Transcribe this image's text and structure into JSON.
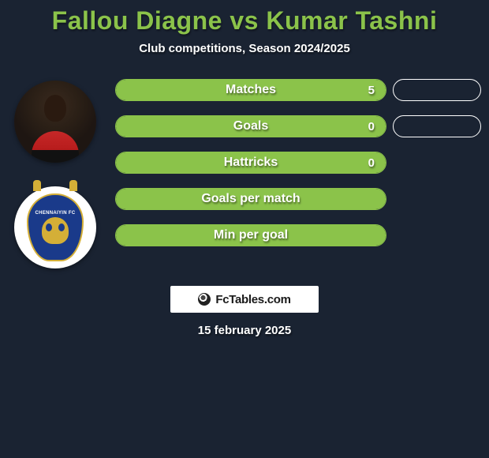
{
  "title": "Fallou Diagne vs Kumar Tashni",
  "subtitle": "Club competitions, Season 2024/2025",
  "footer_brand": "FcTables.com",
  "footer_date": "15 february 2025",
  "colors": {
    "background": "#1a2332",
    "accent": "#8bc34a",
    "text": "#ffffff",
    "pill_border": "#ffffff",
    "logo_bg": "#ffffff",
    "club_blue": "#1a3a8a",
    "club_gold": "#d4af37"
  },
  "stats": [
    {
      "label": "Matches",
      "value": "5",
      "fill_pct": 100,
      "show_value": true,
      "show_pill": true
    },
    {
      "label": "Goals",
      "value": "0",
      "fill_pct": 100,
      "show_value": true,
      "show_pill": true
    },
    {
      "label": "Hattricks",
      "value": "0",
      "fill_pct": 100,
      "show_value": true,
      "show_pill": false
    },
    {
      "label": "Goals per match",
      "value": "",
      "fill_pct": 100,
      "show_value": false,
      "show_pill": false
    },
    {
      "label": "Min per goal",
      "value": "",
      "fill_pct": 100,
      "show_value": false,
      "show_pill": false
    }
  ],
  "club_logo_text": "CHENNAIYIN FC",
  "typography": {
    "title_fontsize": 32,
    "subtitle_fontsize": 15,
    "stat_label_fontsize": 16,
    "footer_fontsize": 15
  }
}
